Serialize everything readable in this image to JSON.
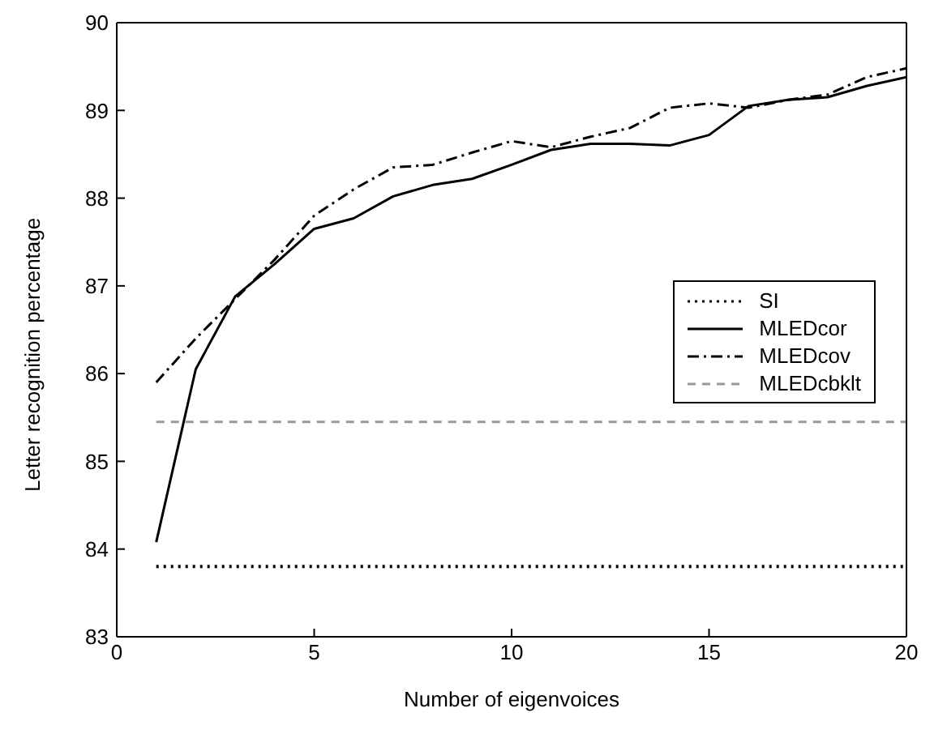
{
  "chart_data": {
    "type": "line",
    "xlabel": "Number of eigenvoices",
    "ylabel": "Letter recognition percentage",
    "x": [
      1,
      2,
      3,
      4,
      5,
      6,
      7,
      8,
      9,
      10,
      11,
      12,
      13,
      14,
      15,
      16,
      17,
      18,
      19,
      20
    ],
    "xlim": [
      0,
      20
    ],
    "xticks": [
      0,
      5,
      10,
      15,
      20
    ],
    "ylim": [
      83,
      90
    ],
    "yticks": [
      83,
      84,
      85,
      86,
      87,
      88,
      89,
      90
    ],
    "series": [
      {
        "name": "SI",
        "color": "#000000",
        "line_style": "dotted",
        "values": [
          83.8,
          83.8,
          83.8,
          83.8,
          83.8,
          83.8,
          83.8,
          83.8,
          83.8,
          83.8,
          83.8,
          83.8,
          83.8,
          83.8,
          83.8,
          83.8,
          83.8,
          83.8,
          83.8,
          83.8
        ]
      },
      {
        "name": "MLEDcor",
        "color": "#000000",
        "line_style": "solid",
        "values": [
          84.08,
          86.05,
          86.88,
          87.25,
          87.65,
          87.77,
          88.02,
          88.15,
          88.22,
          88.38,
          88.55,
          88.62,
          88.62,
          88.6,
          88.72,
          89.05,
          89.12,
          89.15,
          89.28,
          89.38
        ]
      },
      {
        "name": "MLEDcov",
        "color": "#000000",
        "line_style": "dashdot",
        "values": [
          85.9,
          86.4,
          86.85,
          87.3,
          87.8,
          88.1,
          88.35,
          88.38,
          88.52,
          88.65,
          88.58,
          88.7,
          88.8,
          89.03,
          89.08,
          89.03,
          89.12,
          89.18,
          89.38,
          89.48
        ]
      },
      {
        "name": "MLEDcbklt",
        "color": "#999999",
        "line_style": "dashed",
        "values": [
          85.45,
          85.45,
          85.45,
          85.45,
          85.45,
          85.45,
          85.45,
          85.45,
          85.45,
          85.45,
          85.45,
          85.45,
          85.45,
          85.45,
          85.45,
          85.45,
          85.45,
          85.45,
          85.45,
          85.45
        ]
      }
    ],
    "legend": "right",
    "grid": false,
    "marker": "none"
  }
}
